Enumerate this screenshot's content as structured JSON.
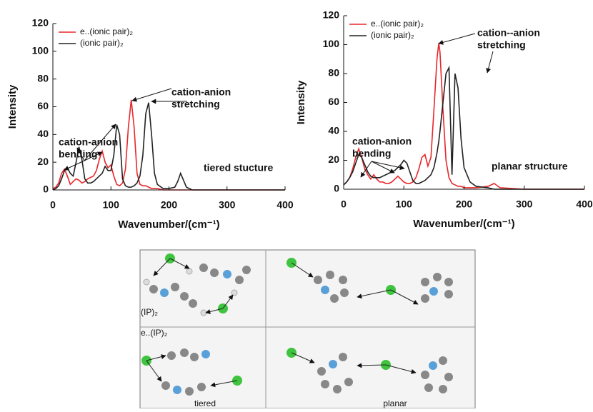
{
  "chart_data": [
    {
      "type": "line",
      "xlabel": "Wavenumber/(cm⁻¹)",
      "ylabel": "Intensity",
      "xlim": [
        0,
        400
      ],
      "ylim": [
        0,
        120
      ],
      "xticks": [
        0,
        100,
        200,
        300,
        400
      ],
      "yticks": [
        0,
        20,
        40,
        60,
        80,
        100,
        120
      ],
      "legend": "upper left",
      "x": [
        0,
        5,
        10,
        15,
        20,
        25,
        30,
        35,
        40,
        45,
        50,
        55,
        60,
        65,
        70,
        75,
        80,
        85,
        90,
        95,
        100,
        105,
        110,
        115,
        120,
        125,
        130,
        135,
        140,
        145,
        150,
        155,
        160,
        165,
        170,
        175,
        180,
        190,
        200,
        210,
        215,
        220,
        225,
        230,
        240,
        260,
        300,
        350,
        400
      ],
      "series": [
        {
          "name": "e..(ionic pair)₂",
          "color": "#e8262a",
          "values": [
            1,
            2,
            5,
            12,
            15,
            10,
            4,
            6,
            8,
            7,
            5,
            6,
            8,
            9,
            10,
            14,
            22,
            28,
            20,
            16,
            18,
            10,
            4,
            3,
            5,
            15,
            45,
            65,
            45,
            12,
            4,
            3,
            3,
            2,
            1,
            1,
            1,
            0,
            0,
            0,
            0,
            0,
            0,
            0,
            0,
            0,
            0,
            0,
            0
          ]
        },
        {
          "name": "(ionic pair)₂",
          "color": "#222222",
          "values": [
            0,
            1,
            3,
            8,
            14,
            16,
            12,
            10,
            20,
            31,
            22,
            8,
            5,
            5,
            6,
            8,
            10,
            12,
            17,
            14,
            14,
            25,
            47,
            40,
            8,
            3,
            2,
            2,
            3,
            5,
            10,
            25,
            55,
            63,
            40,
            12,
            4,
            1,
            1,
            2,
            6,
            12,
            7,
            2,
            0,
            0,
            0,
            0,
            0
          ]
        }
      ],
      "annotations": [
        [
          "cation-anion",
          "bending"
        ],
        [
          "cation-anion",
          "stretching"
        ],
        [
          "tiered stucture"
        ]
      ]
    },
    {
      "type": "line",
      "xlabel": "Wavenumber/(cm⁻¹)",
      "ylabel": "Intensity",
      "xlim": [
        0,
        400
      ],
      "ylim": [
        0,
        120
      ],
      "xticks": [
        0,
        100,
        200,
        300,
        400
      ],
      "yticks": [
        0,
        20,
        40,
        60,
        80,
        100,
        120
      ],
      "legend": "upper left",
      "x": [
        0,
        5,
        10,
        15,
        20,
        25,
        30,
        35,
        40,
        45,
        50,
        55,
        60,
        65,
        70,
        75,
        80,
        85,
        90,
        95,
        100,
        105,
        110,
        115,
        120,
        125,
        130,
        135,
        140,
        145,
        150,
        155,
        158,
        160,
        165,
        170,
        175,
        180,
        185,
        190,
        195,
        200,
        210,
        220,
        240,
        250,
        260,
        300,
        350,
        400
      ],
      "series": [
        {
          "name": "e..(ionic pair)₂",
          "color": "#e8262a",
          "values": [
            3,
            5,
            8,
            14,
            22,
            28,
            22,
            14,
            10,
            7,
            10,
            7,
            5,
            5,
            4,
            4,
            5,
            7,
            9,
            7,
            5,
            4,
            4,
            5,
            8,
            14,
            22,
            24,
            16,
            22,
            55,
            90,
            101,
            95,
            55,
            20,
            8,
            4,
            3,
            2,
            2,
            1,
            1,
            1,
            2,
            4,
            1,
            0,
            0,
            0
          ]
        },
        {
          "name": "(ionic pair)₂",
          "color": "#222222",
          "values": [
            3,
            5,
            8,
            12,
            18,
            24,
            22,
            17,
            12,
            9,
            8,
            8,
            8,
            9,
            10,
            11,
            12,
            13,
            15,
            17,
            20,
            18,
            12,
            6,
            4,
            4,
            5,
            6,
            8,
            10,
            15,
            25,
            33,
            40,
            60,
            80,
            84,
            10,
            80,
            70,
            35,
            15,
            5,
            2,
            1,
            0,
            0,
            0,
            0,
            0
          ]
        }
      ],
      "annotations": [
        [
          "cation-anion",
          "bending"
        ],
        [
          "cation--anion",
          "stretching"
        ],
        [
          "planar structure"
        ]
      ]
    }
  ],
  "structures": {
    "labels": [
      "(IP)₂",
      "e..(IP)₂",
      "tiered",
      "planar"
    ]
  }
}
